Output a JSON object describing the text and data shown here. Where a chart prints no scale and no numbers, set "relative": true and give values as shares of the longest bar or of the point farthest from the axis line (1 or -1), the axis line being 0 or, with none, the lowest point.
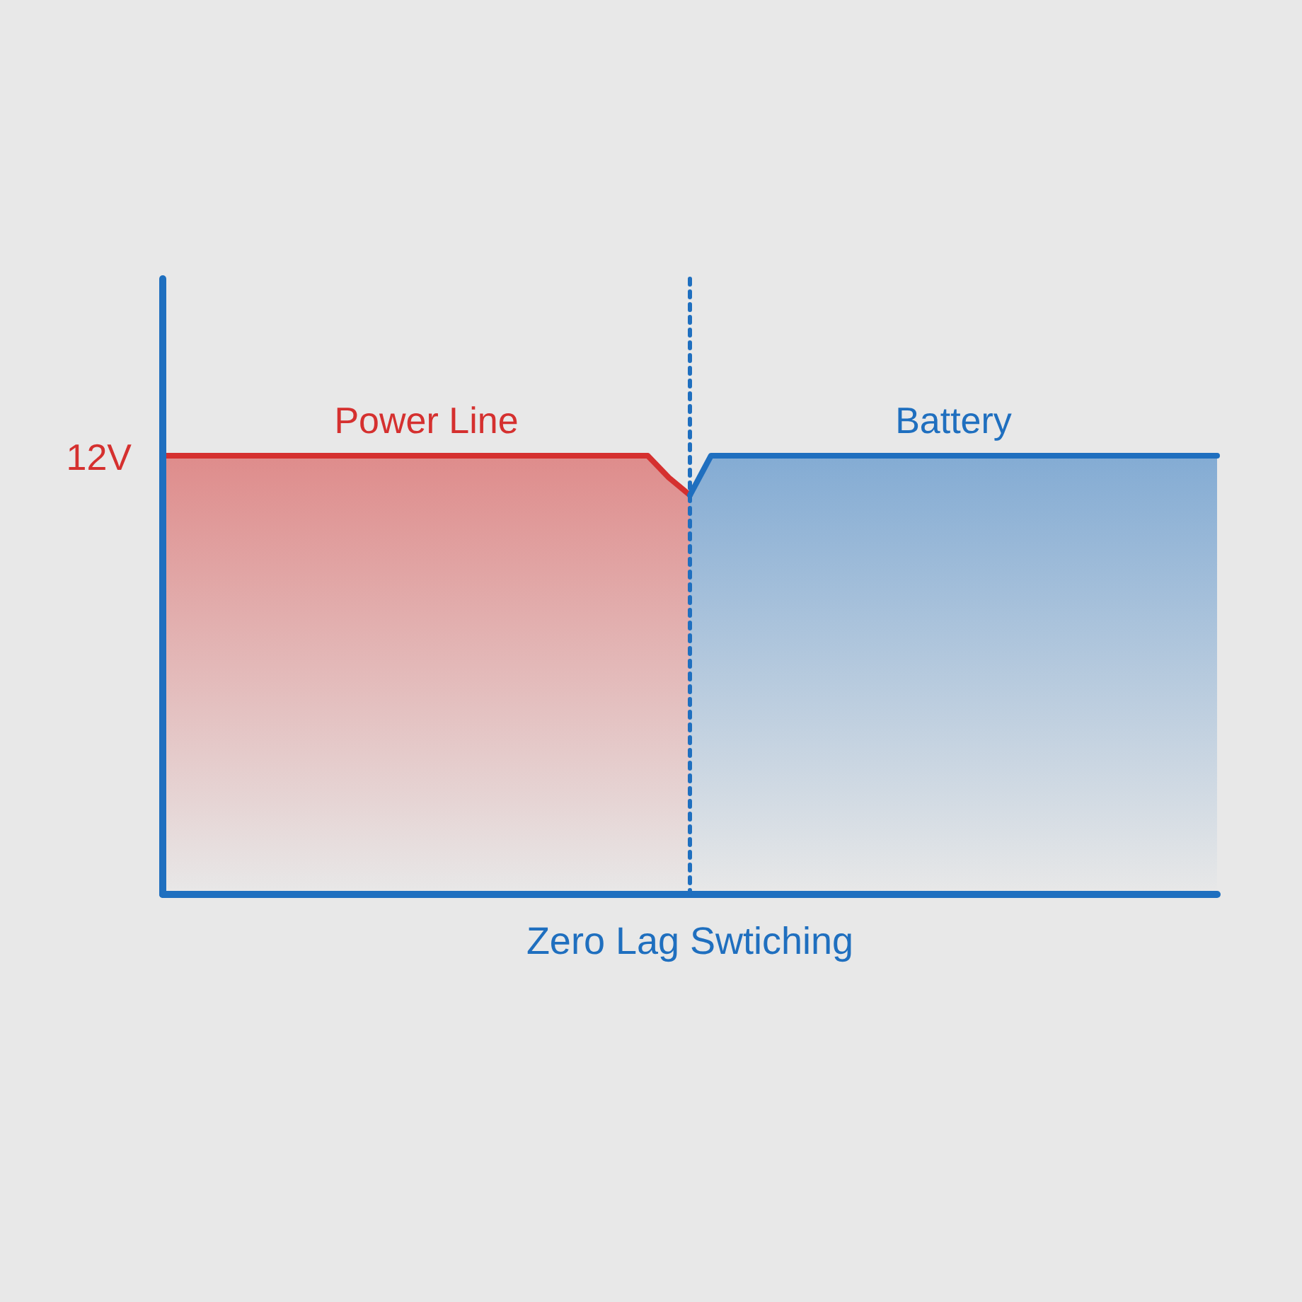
{
  "chart_data": {
    "type": "area",
    "relative": true,
    "xlabel": "Zero Lag Swtiching",
    "annotations": [
      "12V"
    ],
    "categories": [
      null,
      null,
      null,
      null,
      null,
      null,
      null,
      null,
      null,
      null,
      null,
      null,
      null,
      null,
      null,
      null,
      null,
      null,
      null,
      null,
      null,
      null,
      null,
      null,
      null,
      null,
      null,
      null,
      null,
      null,
      null,
      null,
      null,
      null,
      null,
      null,
      null,
      null,
      null,
      null,
      null,
      null,
      null,
      null,
      null,
      null,
      null,
      null,
      null,
      null,
      null
    ],
    "series": [
      {
        "name": "Power Line",
        "color": "#d5302f",
        "values": [
          1,
          1,
          1,
          1,
          1,
          1,
          1,
          1,
          1,
          1,
          1,
          1,
          1,
          1,
          1,
          1,
          1,
          1,
          1,
          1,
          1,
          1,
          1,
          1,
          0.95,
          0.91,
          null,
          null,
          null,
          null,
          null,
          null,
          null,
          null,
          null,
          null,
          null,
          null,
          null,
          null,
          null,
          null,
          null,
          null,
          null,
          null,
          null,
          null,
          null,
          null,
          null
        ]
      },
      {
        "name": "Battery",
        "color": "#1f6fbf",
        "values": [
          null,
          null,
          null,
          null,
          null,
          null,
          null,
          null,
          null,
          null,
          null,
          null,
          null,
          null,
          null,
          null,
          null,
          null,
          null,
          null,
          null,
          null,
          null,
          null,
          null,
          0.91,
          1,
          1,
          1,
          1,
          1,
          1,
          1,
          1,
          1,
          1,
          1,
          1,
          1,
          1,
          1,
          1,
          1,
          1,
          1,
          1,
          1,
          1,
          1,
          1,
          1
        ]
      }
    ]
  }
}
